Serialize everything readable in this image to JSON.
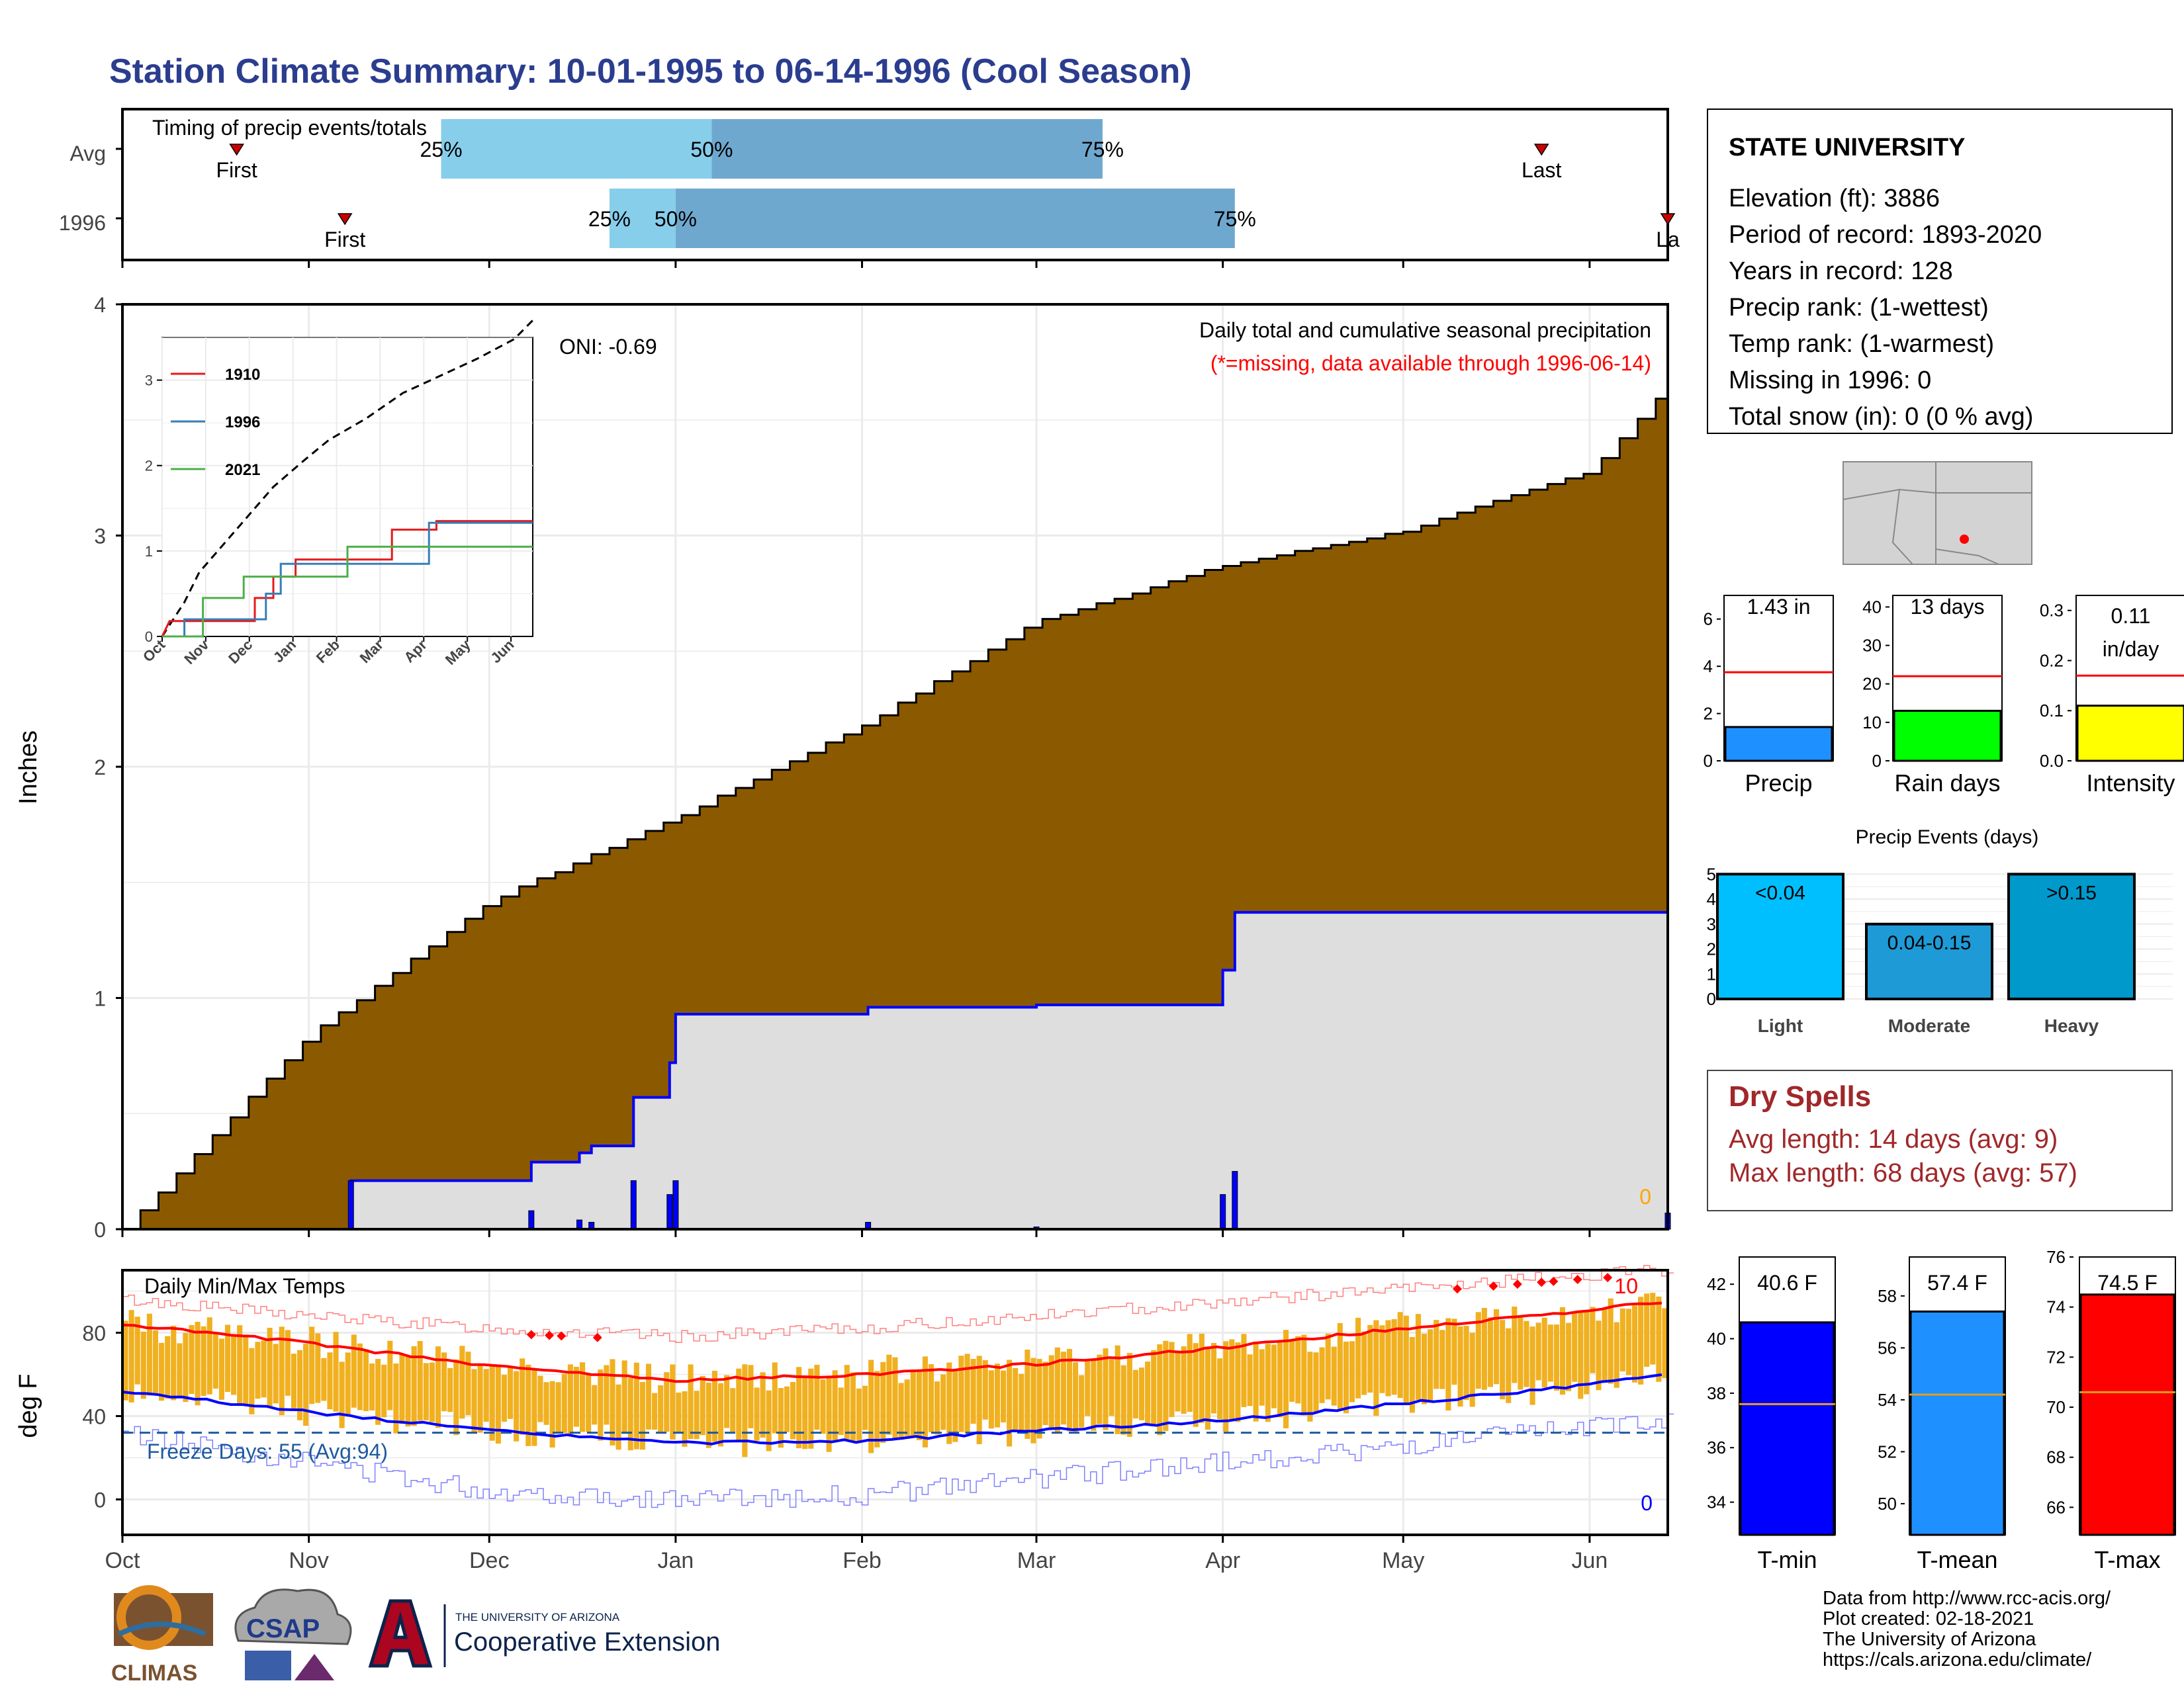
{
  "title": "Station Climate Summary: 10-01-1995 to 06-14-1996 (Cool Season)",
  "colors": {
    "title": "#2b3d8f",
    "precip_fill": "#8b5a00",
    "rain_bar": "#0000ff",
    "band_light": "#87ceeb",
    "band_dark": "#6fa8cf",
    "temp_bar": "#f0b020",
    "tmax_avg": "#ff0000",
    "tmin_avg": "#0000ff",
    "freeze_line": "#1e5a9e",
    "dry_spells": "#a0282a"
  },
  "timing": {
    "title": "Timing of precip events/totals",
    "rows": [
      {
        "label": "Avg",
        "first": "1995-10-20",
        "p25": "1995-11-23",
        "p50": "1996-01-07",
        "p75": "1996-03-12",
        "last": "1996-05-24",
        "first_label": "First",
        "last_label": "Last",
        "p25_label": "25%",
        "p50_label": "50%",
        "p75_label": "75%"
      },
      {
        "label": "1996",
        "first": "1995-11-07",
        "p25": "1995-12-21",
        "p50": "1996-01-01",
        "p75": "1996-04-03",
        "last": "1996-06-14",
        "first_label": "First",
        "last_label": "La",
        "p25_label": "25%",
        "p50_label": "50%",
        "p75_label": "75%"
      }
    ]
  },
  "main_chart": {
    "ylabel": "Inches",
    "yticks": [
      "0",
      "1",
      "2",
      "3",
      "4"
    ],
    "title": "Daily total and cumulative seasonal precipitation",
    "subtitle": "(*=missing, data available through 1996-06-14)",
    "oni": "ONI: -0.69",
    "missing_count": "0"
  },
  "inset": {
    "xlabels": [
      "Oct",
      "Nov",
      "Dec",
      "Jan",
      "Feb",
      "Mar",
      "Apr",
      "May",
      "Jun"
    ],
    "yticks": [
      "0",
      "1",
      "2",
      "3"
    ],
    "legend": [
      "1910",
      "1996",
      "2021"
    ],
    "legend_colors": [
      "#e41a1c",
      "#377eb8",
      "#4daf4a"
    ]
  },
  "temp_chart": {
    "ylabel": "deg F",
    "title": "Daily Min/Max Temps",
    "yticks": [
      "0",
      "40",
      "80"
    ],
    "freeze_label": "Freeze Days: 55 (Avg:94)",
    "top_count": "10",
    "bottom_count": "0"
  },
  "xaxis_months": [
    "Oct",
    "Nov",
    "Dec",
    "Jan",
    "Feb",
    "Mar",
    "Apr",
    "May",
    "Jun"
  ],
  "station": {
    "name": "STATE UNIVERSITY",
    "lines": [
      "Elevation (ft): 3886",
      "Period of record: 1893-2020",
      "Years in record: 128",
      "Precip rank:  (1-wettest)",
      "Temp rank:  (1-warmest)",
      "Missing in 1996: 0",
      "Total snow (in): 0 (0 % avg)"
    ]
  },
  "mini_bars": [
    {
      "label": "Precip",
      "value_label": "1.43 in",
      "value_label2": "",
      "value": 1.43,
      "avg": 3.75,
      "ymax": 7,
      "yticks": [
        "0",
        "2",
        "4",
        "6"
      ],
      "tick_vals": [
        0,
        2,
        4,
        6
      ],
      "color": "#1e90ff"
    },
    {
      "label": "Rain days",
      "value_label": "13 days",
      "value_label2": "",
      "value": 13,
      "avg": 22,
      "ymax": 43,
      "yticks": [
        "0",
        "10",
        "20",
        "30",
        "40"
      ],
      "tick_vals": [
        0,
        10,
        20,
        30,
        40
      ],
      "color": "#00ff00"
    },
    {
      "label": "Intensity",
      "value_label": "0.11",
      "value_label2": "in/day",
      "value": 0.11,
      "avg": 0.17,
      "ymax": 0.33,
      "yticks": [
        "0.0",
        "0.1",
        "0.2",
        "0.3"
      ],
      "tick_vals": [
        0,
        0.1,
        0.2,
        0.3
      ],
      "color": "#ffff00"
    }
  ],
  "events": {
    "title": "Precip Events (days)",
    "yticks": [
      "0",
      "1",
      "2",
      "3",
      "4",
      "5"
    ],
    "bars": [
      {
        "label": "Light",
        "bar_text": "<0.04",
        "value": 5,
        "color": "#00bfff"
      },
      {
        "label": "Moderate",
        "bar_text": "0.04-0.15",
        "value": 3,
        "color": "#1e9ad6"
      },
      {
        "label": "Heavy",
        "bar_text": ">0.15",
        "value": 5,
        "color": "#0099cc"
      }
    ]
  },
  "dry_spells": {
    "title": "Dry Spells",
    "avg_line": "Avg length: 14 days (avg: 9)",
    "max_line": "Max length: 68 days (avg: 57)"
  },
  "temp_bars": [
    {
      "label": "T-min",
      "value_label": "40.6 F",
      "value": 40.6,
      "avg": 37.6,
      "ymin": 32.8,
      "ymax": 43,
      "yticks": [
        "34",
        "36",
        "38",
        "40",
        "42"
      ],
      "tick_vals": [
        34,
        36,
        38,
        40,
        42
      ],
      "color": "#0000ff"
    },
    {
      "label": "T-mean",
      "value_label": "57.4 F",
      "value": 57.4,
      "avg": 54.2,
      "ymin": 48.8,
      "ymax": 59.5,
      "yticks": [
        "50",
        "52",
        "54",
        "56",
        "58"
      ],
      "tick_vals": [
        50,
        52,
        54,
        56,
        58
      ],
      "color": "#1e90ff"
    },
    {
      "label": "T-max",
      "value_label": "74.5 F",
      "value": 74.5,
      "avg": 70.6,
      "ymin": 64.9,
      "ymax": 76,
      "yticks": [
        "66",
        "68",
        "70",
        "72",
        "74",
        "76"
      ],
      "tick_vals": [
        66,
        68,
        70,
        72,
        74,
        76
      ],
      "color": "#ff0000"
    }
  ],
  "credits": [
    "Data from http://www.rcc-acis.org/",
    "Plot created: 02-18-2021",
    "The University of Arizona",
    "https://cals.arizona.edu/climate/"
  ],
  "logos": {
    "climas": "CLIMAS",
    "csap": "CSAP",
    "ua_small": "THE UNIVERSITY OF ARIZONA",
    "ua_big": "Cooperative Extension"
  },
  "chart_data": [
    {
      "type": "area",
      "title": "Daily total and cumulative seasonal precipitation",
      "ylabel": "Inches",
      "ylim": [
        0,
        4
      ],
      "x": [
        "1995-10-01",
        "1995-11-01",
        "1995-12-01",
        "1996-01-01",
        "1996-02-01",
        "1996-03-01",
        "1996-04-01",
        "1996-05-01",
        "1996-06-01",
        "1996-06-14"
      ],
      "series": [
        {
          "name": "Avg",
          "values": [
            0,
            0.84,
            1.42,
            1.78,
            2.18,
            2.63,
            2.87,
            3.02,
            3.28,
            3.65
          ]
        },
        {
          "name": "1996",
          "values": [
            0,
            0,
            0.21,
            0.53,
            0.87,
            0.9,
            0.91,
            1.36,
            1.36,
            1.43
          ]
        }
      ],
      "daily_precip": [
        {
          "date": "1995-11-08",
          "value": 0.21
        },
        {
          "date": "1995-12-08",
          "value": 0.08
        },
        {
          "date": "1995-12-16",
          "value": 0.04
        },
        {
          "date": "1995-12-18",
          "value": 0.03
        },
        {
          "date": "1995-12-25",
          "value": 0.21
        },
        {
          "date": "1995-12-31",
          "value": 0.15
        },
        {
          "date": "1996-01-01",
          "value": 0.21
        },
        {
          "date": "1996-02-02",
          "value": 0.03
        },
        {
          "date": "1996-03-01",
          "value": 0.01
        },
        {
          "date": "1996-04-01",
          "value": 0.15
        },
        {
          "date": "1996-04-03",
          "value": 0.25
        },
        {
          "date": "1996-06-14",
          "value": 0.07
        }
      ]
    },
    {
      "type": "line",
      "title": "Daily Min/Max Temps",
      "ylabel": "deg F",
      "ylim": [
        -10,
        105
      ],
      "x": [
        "1995-10-01",
        "1995-11-01",
        "1995-12-01",
        "1996-01-01",
        "1996-02-01",
        "1996-03-01",
        "1996-04-01",
        "1996-05-01",
        "1996-06-01",
        "1996-06-14"
      ],
      "series": [
        {
          "name": "Avg Max",
          "values": [
            84,
            75,
            64,
            57,
            60,
            65,
            73,
            82,
            91,
            95
          ]
        },
        {
          "name": "Avg Min",
          "values": [
            52,
            42,
            33,
            27,
            28,
            33,
            38,
            46,
            55,
            60
          ]
        },
        {
          "name": "Record Max",
          "values": [
            96,
            88,
            82,
            78,
            82,
            88,
            95,
            101,
            108,
            110
          ]
        },
        {
          "name": "Record Min",
          "values": [
            32,
            18,
            4,
            0,
            2,
            10,
            18,
            25,
            35,
            38
          ]
        }
      ],
      "freeze_line": 32
    }
  ]
}
